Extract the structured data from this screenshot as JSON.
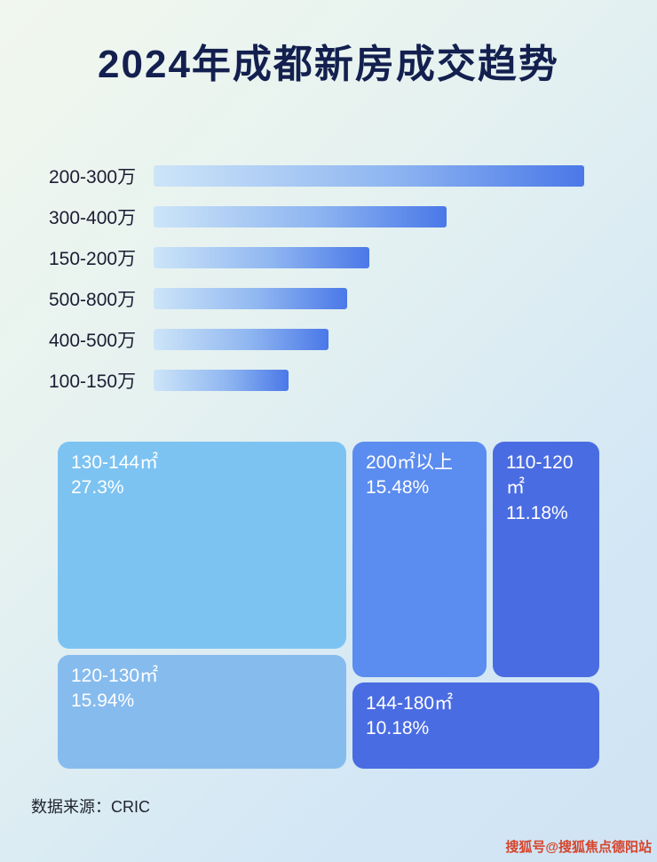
{
  "page": {
    "title": "2024年成都新房成交趋势",
    "source": "数据来源：CRIC",
    "watermark": "搜狐号@搜狐焦点德阳站"
  },
  "chart_data": [
    {
      "type": "bar",
      "orientation": "horizontal",
      "title": "2024年成都新房成交趋势",
      "categories": [
        "200-300万",
        "300-400万",
        "150-200万",
        "500-800万",
        "400-500万",
        "100-150万"
      ],
      "values": [
        485,
        330,
        243,
        218,
        197,
        152
      ],
      "values_note": "relative bar lengths in px; no numeric axis or data labels shown in image",
      "xlabel": "",
      "ylabel": "",
      "grid": false,
      "legend": false,
      "bar_gradient": [
        "#cde5f8",
        "#4a78e8"
      ]
    },
    {
      "type": "heatmap",
      "subtype": "treemap",
      "items": [
        {
          "label": "130-144㎡",
          "value": 27.3,
          "pct": "27.3%",
          "color": "#7cc3f2"
        },
        {
          "label": "200㎡以上",
          "value": 15.48,
          "pct": "15.48%",
          "color": "#5b8cef"
        },
        {
          "label": "110-120㎡",
          "value": 11.18,
          "pct": "11.18%",
          "color": "#4a6ce2"
        },
        {
          "label": "120-130㎡",
          "value": 15.94,
          "pct": "15.94%",
          "color": "#86bbee"
        },
        {
          "label": "144-180㎡",
          "value": 10.18,
          "pct": "10.18%",
          "color": "#4a6ce2"
        }
      ]
    }
  ]
}
